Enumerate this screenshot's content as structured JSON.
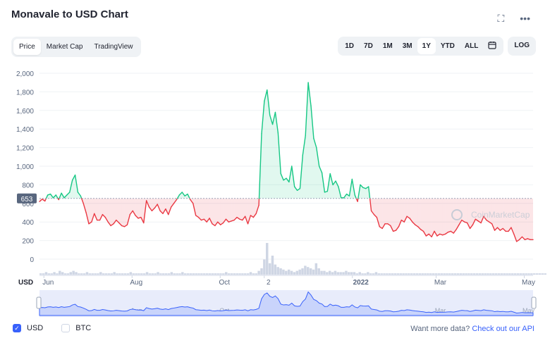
{
  "header": {
    "title": "Monavale to USD Chart",
    "fullscreen_icon": "⛶",
    "more_icon": "•••"
  },
  "tabs": [
    {
      "label": "Price",
      "active": true
    },
    {
      "label": "Market Cap",
      "active": false
    },
    {
      "label": "TradingView",
      "active": false
    }
  ],
  "ranges": [
    {
      "label": "1D",
      "active": false
    },
    {
      "label": "7D",
      "active": false
    },
    {
      "label": "1M",
      "active": false
    },
    {
      "label": "3M",
      "active": false
    },
    {
      "label": "1Y",
      "active": true
    },
    {
      "label": "YTD",
      "active": false
    },
    {
      "label": "ALL",
      "active": false
    }
  ],
  "calendar_icon": "calendar-icon",
  "log_label": "LOG",
  "watermark": "CoinMarketCap",
  "currency_label": "USD",
  "legend": {
    "usd_label": "USD",
    "usd_checked": true,
    "btc_label": "BTC",
    "btc_checked": false
  },
  "api": {
    "prefix": "Want more data?",
    "link": "Check out our API"
  },
  "colors": {
    "up": "#16c784",
    "down": "#ea3943",
    "accent": "#3861fb"
  },
  "chart_data": {
    "type": "line",
    "title": "",
    "ylabel": "",
    "xlabel": "",
    "ylim": [
      0,
      2000
    ],
    "yticks": [
      0,
      200,
      400,
      600,
      800,
      1000,
      1200,
      1400,
      1600,
      1800,
      2000
    ],
    "ytick_labels": [
      "0",
      "200",
      "400",
      "600",
      "800",
      "1,000",
      "1,200",
      "1,400",
      "1,600",
      "1,800",
      "2,000"
    ],
    "reference_value": 653,
    "reference_label": "653",
    "xtick_labels": [
      "Jun",
      "Aug",
      "Oct",
      "2",
      "2022",
      "Mar",
      "May"
    ],
    "xticks": [
      0.01,
      0.21,
      0.41,
      0.51,
      0.71,
      0.9,
      1.1
    ],
    "series": [
      {
        "values": [
          620,
          645,
          625,
          690,
          700,
          660,
          690,
          640,
          710,
          660,
          690,
          720,
          850,
          905,
          720,
          680,
          600,
          500,
          380,
          400,
          490,
          420,
          420,
          480,
          450,
          400,
          360,
          380,
          420,
          390,
          360,
          350,
          370,
          480,
          520,
          470,
          440,
          450,
          390,
          630,
          560,
          520,
          550,
          590,
          520,
          490,
          540,
          480,
          560,
          600,
          640,
          690,
          720,
          680,
          700,
          640,
          600,
          470,
          450,
          420,
          430,
          400,
          440,
          380,
          360,
          400,
          370,
          390,
          430,
          400,
          410,
          420,
          450,
          430,
          420,
          460,
          380,
          470,
          450,
          490,
          580,
          1350,
          1700,
          1820,
          1550,
          1450,
          1580,
          1360,
          920,
          850,
          870,
          830,
          1000,
          780,
          740,
          760,
          1120,
          1330,
          1900,
          1650,
          1300,
          1200,
          1000,
          930,
          720,
          730,
          920,
          800,
          840,
          780,
          660,
          660,
          700,
          680,
          860,
          690,
          620,
          800,
          770,
          760,
          780,
          520,
          480,
          450,
          350,
          330,
          380,
          380,
          360,
          300,
          310,
          350,
          420,
          400,
          460,
          440,
          400,
          370,
          350,
          320,
          300,
          250,
          270,
          240,
          300,
          250,
          270,
          260,
          270,
          290,
          300,
          280,
          320,
          370,
          420,
          400,
          390,
          330,
          370,
          430,
          410,
          390,
          460,
          420,
          400,
          380,
          310,
          340,
          310,
          330,
          300,
          300,
          340,
          270,
          190,
          210,
          240,
          210,
          220,
          210,
          210
        ]
      }
    ],
    "volume": [
      1,
      1,
      2,
      1,
      1,
      2,
      1,
      3,
      2,
      1,
      1,
      2,
      3,
      2,
      1,
      1,
      1,
      2,
      1,
      1,
      1,
      1,
      2,
      1,
      1,
      1,
      1,
      2,
      1,
      1,
      1,
      1,
      1,
      2,
      1,
      1,
      1,
      1,
      1,
      2,
      1,
      1,
      1,
      2,
      1,
      1,
      1,
      1,
      2,
      1,
      1,
      1,
      2,
      1,
      1,
      1,
      1,
      1,
      1,
      1,
      1,
      1,
      1,
      1,
      1,
      1,
      1,
      1,
      2,
      1,
      1,
      1,
      1,
      1,
      1,
      1,
      1,
      2,
      1,
      1,
      3,
      5,
      12,
      25,
      9,
      15,
      8,
      6,
      5,
      4,
      3,
      4,
      3,
      2,
      3,
      4,
      5,
      7,
      6,
      5,
      4,
      9,
      5,
      3,
      3,
      2,
      3,
      2,
      3,
      2,
      2,
      2,
      3,
      2,
      2,
      2,
      1,
      2,
      1,
      1,
      2,
      1,
      1,
      2,
      1,
      1,
      1,
      1,
      1,
      1,
      1,
      1,
      1,
      1,
      1,
      1,
      1,
      1,
      1,
      1,
      1,
      1,
      1,
      1,
      1,
      1,
      1,
      1,
      1,
      1,
      1,
      1,
      1,
      1,
      1,
      1,
      1,
      1,
      1,
      1,
      1,
      1,
      1,
      1,
      1,
      1,
      1,
      1,
      1,
      1,
      1,
      1,
      1,
      1,
      1,
      1,
      1,
      1,
      1,
      1,
      1,
      1,
      1,
      1,
      1,
      1
    ]
  }
}
